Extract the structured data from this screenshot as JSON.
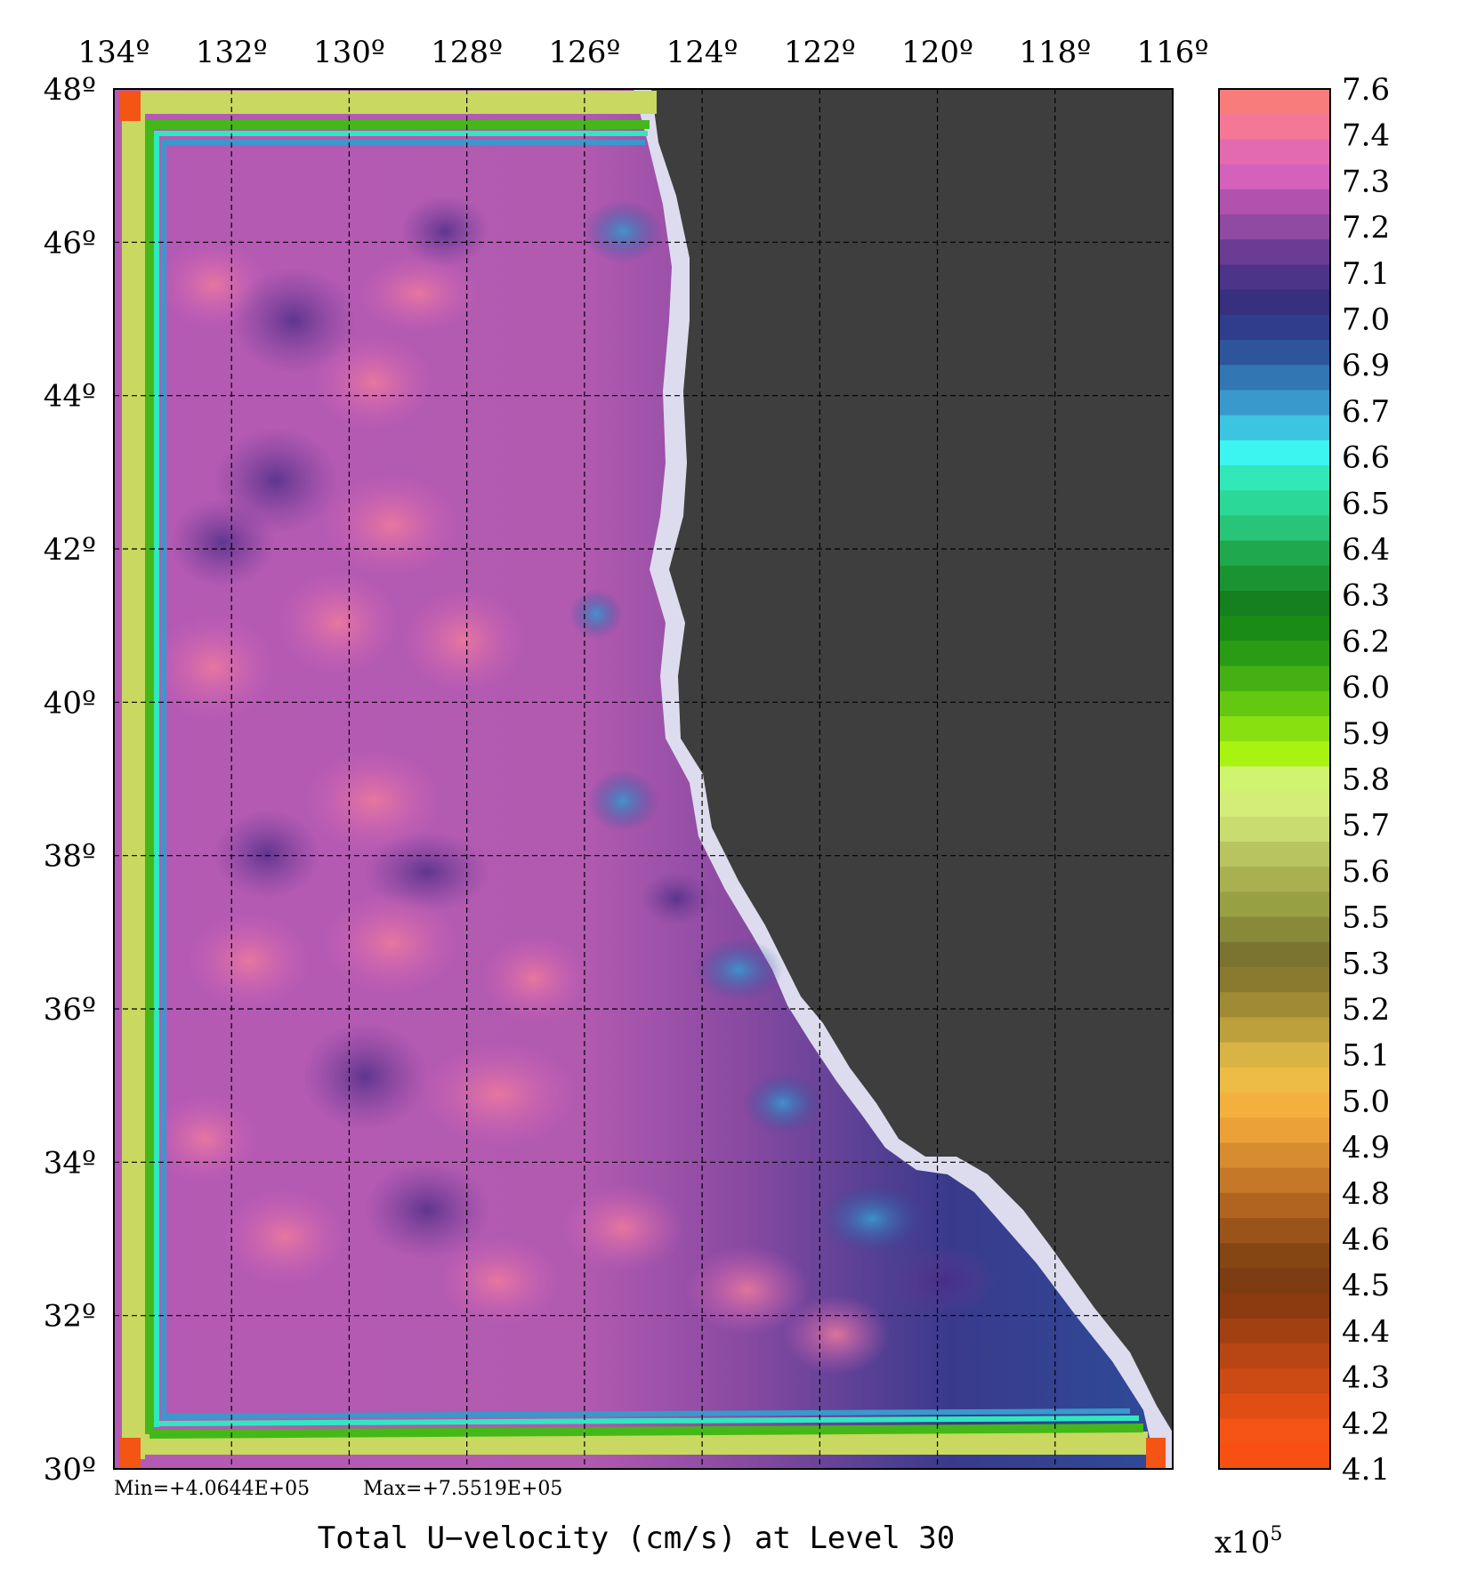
{
  "map": {
    "lon_ticks": [
      "134º",
      "132º",
      "130º",
      "128º",
      "126º",
      "124º",
      "122º",
      "120º",
      "118º",
      "116º"
    ],
    "lat_ticks": [
      "48º",
      "46º",
      "44º",
      "42º",
      "40º",
      "38º",
      "36º",
      "34º",
      "32º",
      "30º"
    ],
    "lon_range": [
      134,
      116
    ],
    "lat_range": [
      30,
      48
    ],
    "grid": true,
    "land_color": "#3e3e3e",
    "coast_color": "#dcdcee"
  },
  "stats": {
    "min_label": "Min=+4.0644E+05",
    "max_label": "Max=+7.5519E+05"
  },
  "title": "Total U−velocity (cm/s) at Level 30",
  "colorbar": {
    "scale_base": "x10",
    "scale_exp": "5",
    "labels": [
      "7.6",
      "7.4",
      "7.3",
      "7.2",
      "7.1",
      "7.0",
      "6.9",
      "6.7",
      "6.6",
      "6.5",
      "6.4",
      "6.3",
      "6.2",
      "6.0",
      "5.9",
      "5.8",
      "5.7",
      "5.6",
      "5.5",
      "5.3",
      "5.2",
      "5.1",
      "5.0",
      "4.9",
      "4.8",
      "4.6",
      "4.5",
      "4.4",
      "4.3",
      "4.2",
      "4.1"
    ],
    "colors": [
      "#f87c7c",
      "#f47896",
      "#e46ab0",
      "#d462bc",
      "#b052ae",
      "#904aa2",
      "#6a3c94",
      "#4c3488",
      "#36307e",
      "#2e3e8c",
      "#2e549c",
      "#3276b4",
      "#3a98cc",
      "#3cc4e0",
      "#3cf4f0",
      "#30e8b8",
      "#2cd898",
      "#28c478",
      "#20a84c",
      "#1a9432",
      "#14801e",
      "#1a8c16",
      "#2a9c14",
      "#44b014",
      "#64c810",
      "#88e010",
      "#a8f410",
      "#d0f470",
      "#d4ec78",
      "#c8dc70",
      "#b8c460",
      "#a8b050",
      "#98a044",
      "#888a3a",
      "#7a7430",
      "#8a7a30",
      "#a08a34",
      "#bca03c",
      "#d8b444",
      "#ecbc44",
      "#f4b03c",
      "#eca038",
      "#d88c30",
      "#c47828",
      "#b06420",
      "#9a541a",
      "#864614",
      "#7e3c12",
      "#8c3a10",
      "#a24012",
      "#b84614",
      "#cc4a14",
      "#e04e14",
      "#f45414",
      "#f85010"
    ]
  }
}
